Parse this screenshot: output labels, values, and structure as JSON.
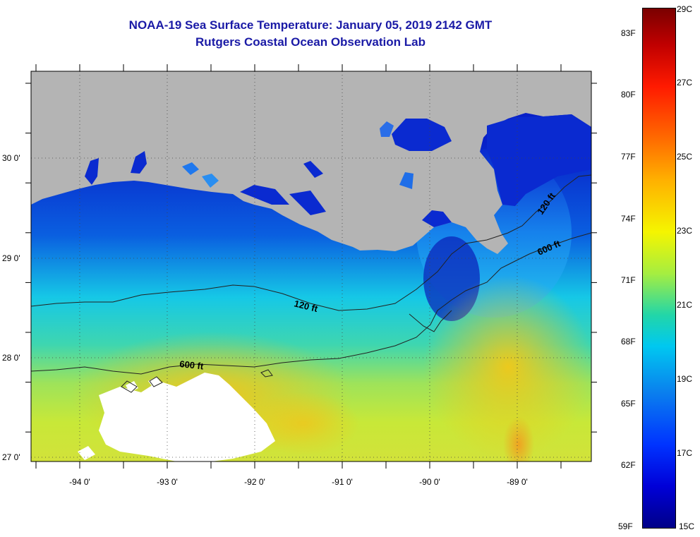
{
  "header": {
    "title": "NOAA-19 Sea Surface Temperature:  January 05, 2019 2142 GMT",
    "subtitle": "Rutgers Coastal Ocean Observation Lab"
  },
  "map": {
    "lat_labels": [
      "30 0'",
      "29 0'",
      "28 0'",
      "27 0'"
    ],
    "lon_labels": [
      "-94 0'",
      "-93 0'",
      "-92 0'",
      "-91 0'",
      "-90 0'",
      "-89 0'"
    ],
    "lat_range": [
      26.95,
      30.9
    ],
    "lon_range": [
      -94.55,
      -88.0
    ],
    "contours": [
      {
        "label": "120 ft",
        "depth_ft": 120
      },
      {
        "label": "600 ft",
        "depth_ft": 600
      }
    ],
    "contour_labels": [
      "120 ft",
      "120 ft",
      "600 ft",
      "600 ft"
    ],
    "colors": {
      "land": "#b4b4b4",
      "cloud": "#ffffff",
      "contour": "#222222",
      "title": "#1a1aa6"
    }
  },
  "colorbar": {
    "fahrenheit": [
      "83F",
      "80F",
      "77F",
      "74F",
      "71F",
      "68F",
      "65F",
      "62F",
      "59F"
    ],
    "celsius": [
      "29C",
      "27C",
      "25C",
      "23C",
      "21C",
      "19C",
      "17C",
      "15C"
    ],
    "range_c": [
      15,
      29
    ]
  }
}
